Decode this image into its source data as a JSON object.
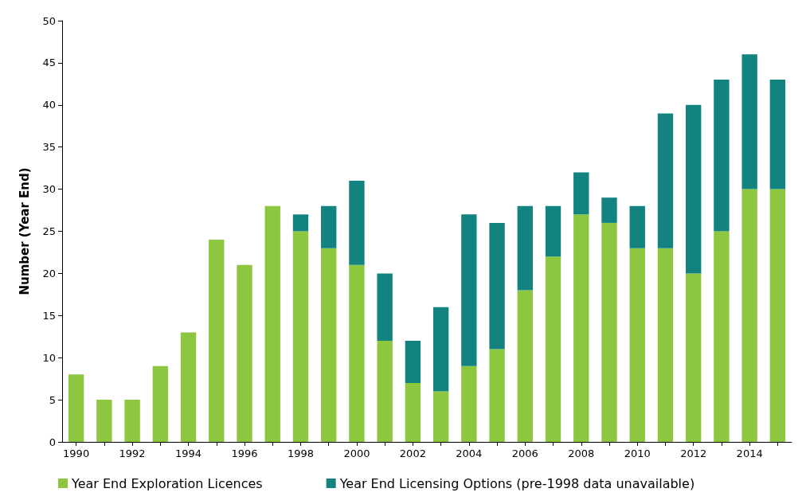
{
  "chart_data": {
    "type": "bar",
    "stacked": true,
    "ylabel": "Number (Year End)",
    "categories": [
      "1990",
      null,
      "1992",
      null,
      "1994",
      null,
      "1996",
      null,
      "1998",
      null,
      "2000",
      null,
      "2002",
      null,
      "2004",
      null,
      "2006",
      null,
      "2008",
      null,
      "2010",
      null,
      "2012",
      null,
      "2014",
      null
    ],
    "series": [
      {
        "name": "Year End Exploration Licences",
        "color": "#8dc63f",
        "values": [
          8,
          5,
          5,
          9,
          13,
          24,
          21,
          28,
          25,
          23,
          21,
          12,
          7,
          6,
          9,
          11,
          18,
          22,
          27,
          26,
          23,
          23,
          20,
          25,
          30,
          30
        ]
      },
      {
        "name": "Year End Licensing Options (pre-1998 data unavailable)",
        "color": "#12837f",
        "values": [
          null,
          null,
          null,
          null,
          null,
          null,
          null,
          null,
          2,
          5,
          10,
          8,
          5,
          10,
          18,
          15,
          10,
          6,
          5,
          3,
          5,
          16,
          20,
          18,
          16,
          13
        ]
      }
    ],
    "ylim": [
      0,
      50
    ],
    "yticks": [
      0,
      5,
      10,
      15,
      20,
      25,
      30,
      35,
      40,
      45,
      50
    ],
    "grid": false,
    "legend": "bottom"
  }
}
